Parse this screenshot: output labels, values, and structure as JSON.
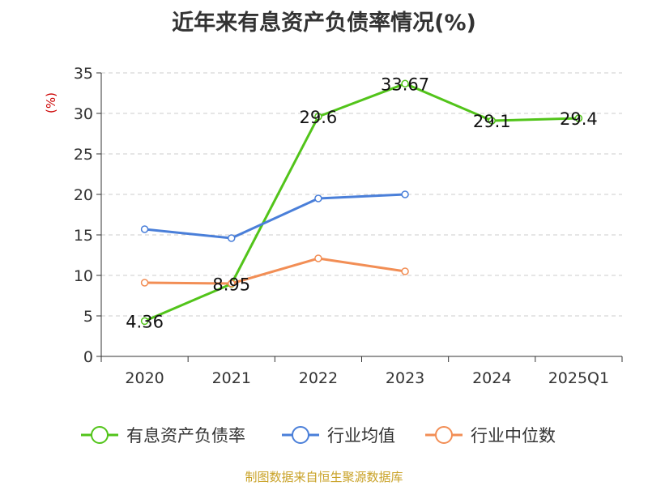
{
  "title": "近年来有息资产负债率情况(%)",
  "source_note": "制图数据来自恒生聚源数据库",
  "colors": {
    "title": "#333333",
    "axis": "#333333",
    "grid": "#cccccc",
    "unit": "#cc0000",
    "source": "#c9a227",
    "debt_ratio": "#52c41a",
    "industry_avg": "#4a7fd9",
    "industry_median": "#f28e55"
  },
  "chart_data": {
    "type": "line",
    "title": "近年来有息资产负债率情况(%)",
    "ylabel": "(%)",
    "xlabel": "",
    "ylim": [
      0,
      35
    ],
    "yticks": [
      0,
      5,
      10,
      15,
      20,
      25,
      30,
      35
    ],
    "grid": true,
    "legend_position": "bottom",
    "categories": [
      "2020",
      "2021",
      "2022",
      "2023",
      "2024",
      "2025Q1"
    ],
    "series": [
      {
        "name": "有息资产负债率",
        "color": "#52c41a",
        "values": [
          4.36,
          8.95,
          29.6,
          33.67,
          29.1,
          29.4
        ],
        "labels": [
          "4.36",
          "8.95",
          "29.6",
          "33.67",
          "29.1",
          "29.4"
        ],
        "show_labels": true
      },
      {
        "name": "行业均值",
        "color": "#4a7fd9",
        "values": [
          15.7,
          14.6,
          19.5,
          20.0,
          null,
          null
        ],
        "show_labels": false
      },
      {
        "name": "行业中位数",
        "color": "#f28e55",
        "values": [
          9.1,
          9.0,
          12.1,
          10.5,
          null,
          null
        ],
        "show_labels": false
      }
    ]
  }
}
